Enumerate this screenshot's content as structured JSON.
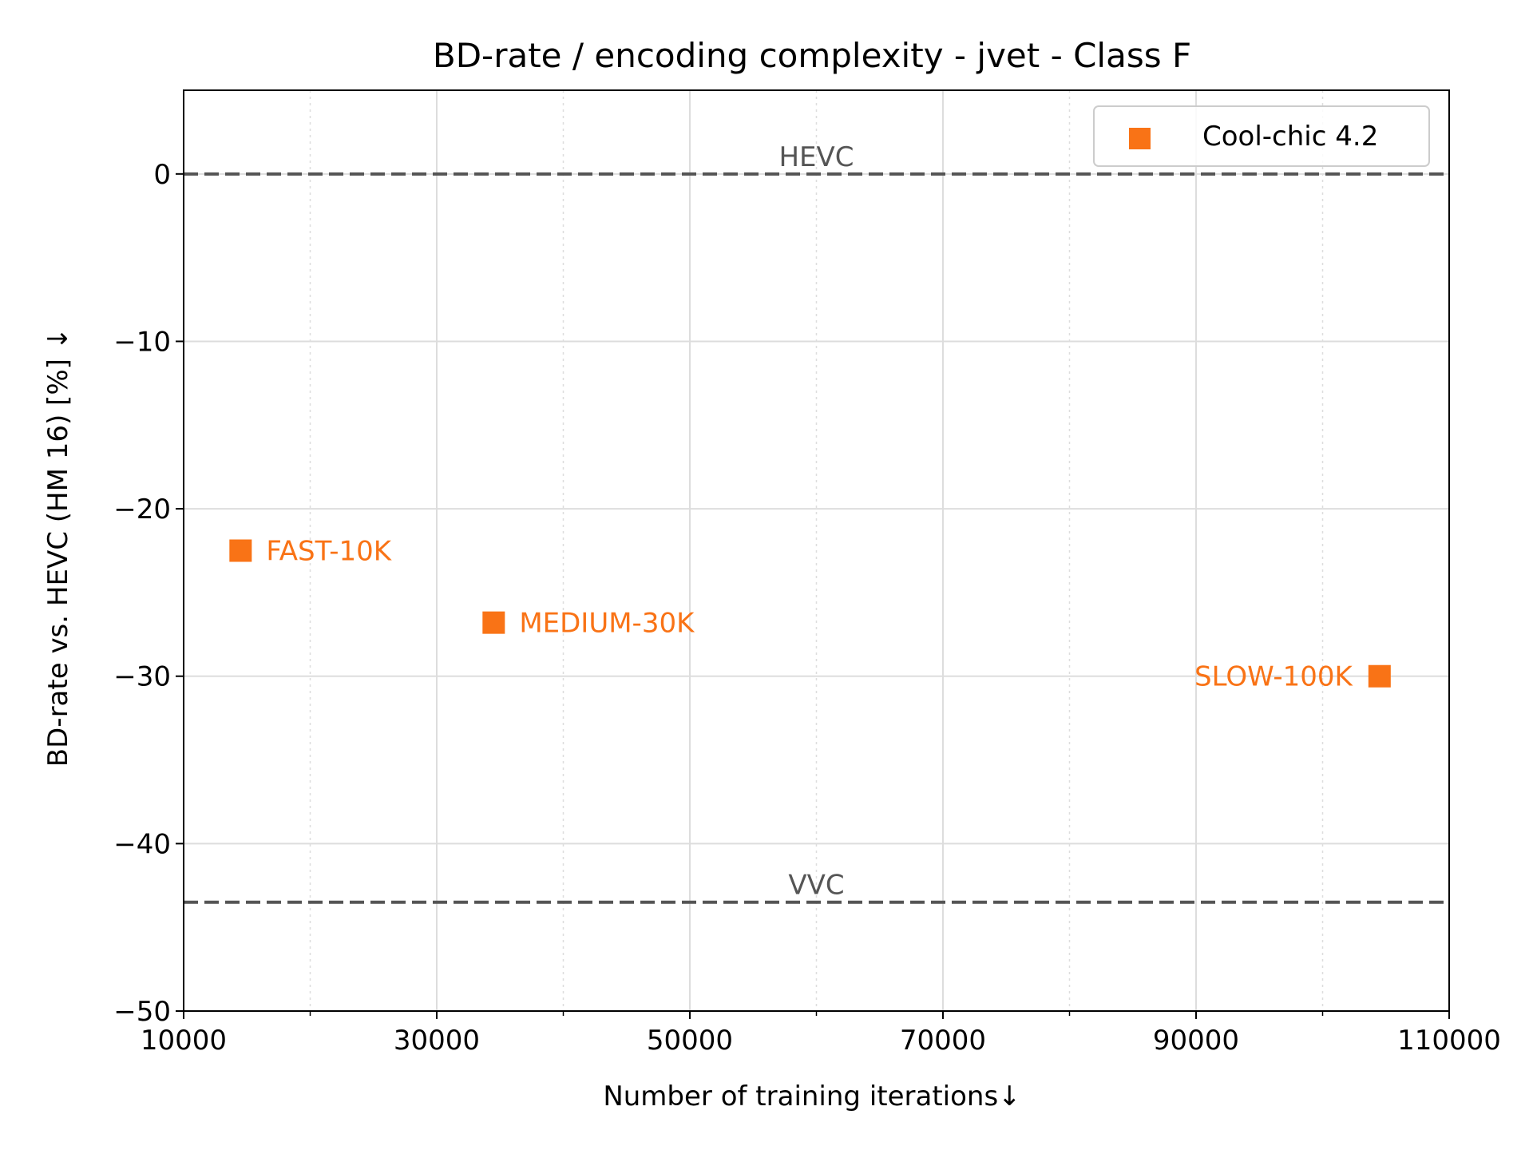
{
  "chart_data": {
    "type": "scatter",
    "title": "BD-rate / encoding complexity  - jvet - Class F",
    "xlabel": "Number of training iterations↓",
    "ylabel": "BD-rate vs. HEVC (HM 16) [%]  ↓",
    "xlim": [
      10000,
      110000
    ],
    "ylim": [
      -50,
      5
    ],
    "x_ticks": [
      10000,
      30000,
      50000,
      70000,
      90000,
      110000
    ],
    "x_minor_ticks": [
      20000,
      40000,
      60000,
      80000,
      100000
    ],
    "y_ticks": [
      0,
      -10,
      -20,
      -30,
      -40,
      -50
    ],
    "x_tick_labels": [
      "10000",
      "30000",
      "50000",
      "70000",
      "90000",
      "110000"
    ],
    "y_tick_labels": [
      "0",
      "−10",
      "−20",
      "−30",
      "−40",
      "−50"
    ],
    "grid": true,
    "legend_position": "top-right",
    "series": [
      {
        "name": "Cool-chic 4.2",
        "color": "#f97316",
        "marker": "square",
        "points": [
          {
            "x": 14500,
            "y": -22.5,
            "label": "FAST-10K"
          },
          {
            "x": 34500,
            "y": -26.8,
            "label": "MEDIUM-30K"
          },
          {
            "x": 104500,
            "y": -30.0,
            "label": "SLOW-100K"
          }
        ]
      }
    ],
    "reference_lines": [
      {
        "label": "HEVC",
        "y": 0,
        "color": "#555555",
        "style": "dashed"
      },
      {
        "label": "VVC",
        "y": -43.5,
        "color": "#555555",
        "style": "dashed"
      }
    ]
  }
}
